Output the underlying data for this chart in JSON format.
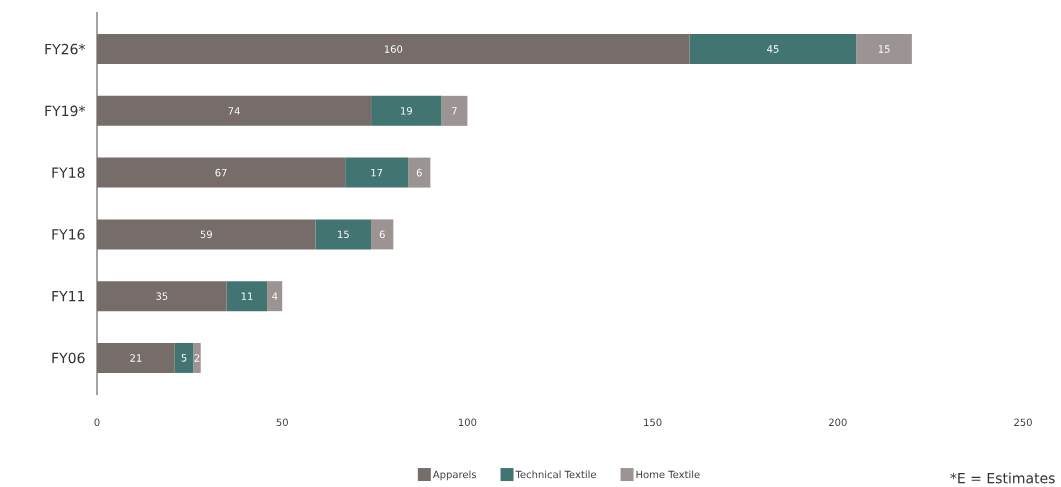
{
  "chart_data": {
    "type": "bar",
    "orientation": "horizontal",
    "stacked": true,
    "data_labels": true,
    "legend": "bottom",
    "grid": false,
    "categories": [
      "FY26*",
      "FY19*",
      "FY18",
      "FY16",
      "FY11",
      "FY06"
    ],
    "series": [
      {
        "name": "Apparels",
        "color": "#766d6b",
        "values": [
          160,
          74,
          67,
          59,
          35,
          21
        ]
      },
      {
        "name": "Technical Textile",
        "color": "#427572",
        "values": [
          45,
          19,
          17,
          15,
          11,
          5
        ]
      },
      {
        "name": "Home Textile",
        "color": "#9c9492",
        "values": [
          15,
          7,
          6,
          6,
          4,
          2
        ]
      }
    ],
    "xlim": [
      0,
      250
    ],
    "xticks": [
      0,
      50,
      100,
      150,
      200,
      250
    ],
    "annotations": [
      "*E = Estimates"
    ]
  }
}
